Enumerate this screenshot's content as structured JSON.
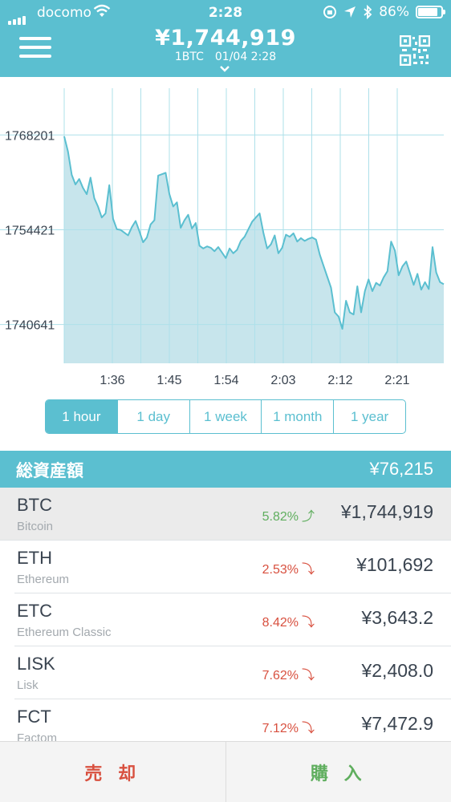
{
  "status_bar": {
    "carrier": "docomo",
    "time": "2:28",
    "battery": "86%"
  },
  "header": {
    "price": "¥1,744,919",
    "pair": "1BTC",
    "datetime": "01/04 2:28",
    "icons": [
      "menu-icon",
      "chevron-down-icon",
      "qr-code-icon"
    ]
  },
  "chart_data": {
    "type": "area",
    "x_ticks": [
      "1:36",
      "1:45",
      "1:54",
      "2:03",
      "2:12",
      "2:21"
    ],
    "y_ticks": [
      "1768201",
      "1754421",
      "1740641"
    ],
    "y_tick_values": [
      1768201,
      1754421,
      1740641
    ],
    "ylim": [
      1735000,
      1775000
    ],
    "grid": true,
    "colors": {
      "line": "#5bbfd0",
      "fill": "#c7e5ec",
      "grid": "#aee0ea"
    },
    "values": [
      1768000,
      1765800,
      1762400,
      1761000,
      1761800,
      1760500,
      1759600,
      1762000,
      1759000,
      1757800,
      1756200,
      1756800,
      1760900,
      1756000,
      1754500,
      1754400,
      1754000,
      1753600,
      1754800,
      1755700,
      1754200,
      1752600,
      1753300,
      1755200,
      1755800,
      1762300,
      1762500,
      1762700,
      1759600,
      1757800,
      1758400,
      1754700,
      1755800,
      1756600,
      1754600,
      1755400,
      1752100,
      1751700,
      1752000,
      1751800,
      1751300,
      1751900,
      1751100,
      1750300,
      1751700,
      1751000,
      1751500,
      1752800,
      1753400,
      1754500,
      1755600,
      1756200,
      1756800,
      1754000,
      1751700,
      1752300,
      1753600,
      1751000,
      1751800,
      1753700,
      1753400,
      1753900,
      1752700,
      1753200,
      1752800,
      1753100,
      1753300,
      1753000,
      1750800,
      1749200,
      1747600,
      1746000,
      1742400,
      1741800,
      1740000,
      1744100,
      1742400,
      1742100,
      1746200,
      1742400,
      1745500,
      1747200,
      1745500,
      1746700,
      1746300,
      1747500,
      1748400,
      1752700,
      1751400,
      1747800,
      1749100,
      1749800,
      1748100,
      1746400,
      1748000,
      1745700,
      1746800,
      1745800,
      1751900,
      1748200,
      1746800,
      1746500
    ]
  },
  "range_tabs": [
    {
      "label": "1 hour",
      "active": true
    },
    {
      "label": "1 day",
      "active": false
    },
    {
      "label": "1 week",
      "active": false
    },
    {
      "label": "1 month",
      "active": false
    },
    {
      "label": "1 year",
      "active": false
    }
  ],
  "total": {
    "label": "総資産額",
    "value": "¥76,215"
  },
  "coins": [
    {
      "symbol": "BTC",
      "name": "Bitcoin",
      "change": "5.82%",
      "direction": "up",
      "price": "¥1,744,919"
    },
    {
      "symbol": "ETH",
      "name": "Ethereum",
      "change": "2.53%",
      "direction": "down",
      "price": "¥101,692"
    },
    {
      "symbol": "ETC",
      "name": "Ethereum Classic",
      "change": "8.42%",
      "direction": "down",
      "price": "¥3,643.2"
    },
    {
      "symbol": "LISK",
      "name": "Lisk",
      "change": "7.62%",
      "direction": "down",
      "price": "¥2,408.0"
    },
    {
      "symbol": "FCT",
      "name": "Factom",
      "change": "7.12%",
      "direction": "down",
      "price": "¥7,472.9"
    }
  ],
  "actions": {
    "sell_label": "売 却",
    "buy_label": "購 入"
  },
  "colors": {
    "accent": "#5bbfd0",
    "up": "#5fae5e",
    "down": "#d8503f"
  }
}
